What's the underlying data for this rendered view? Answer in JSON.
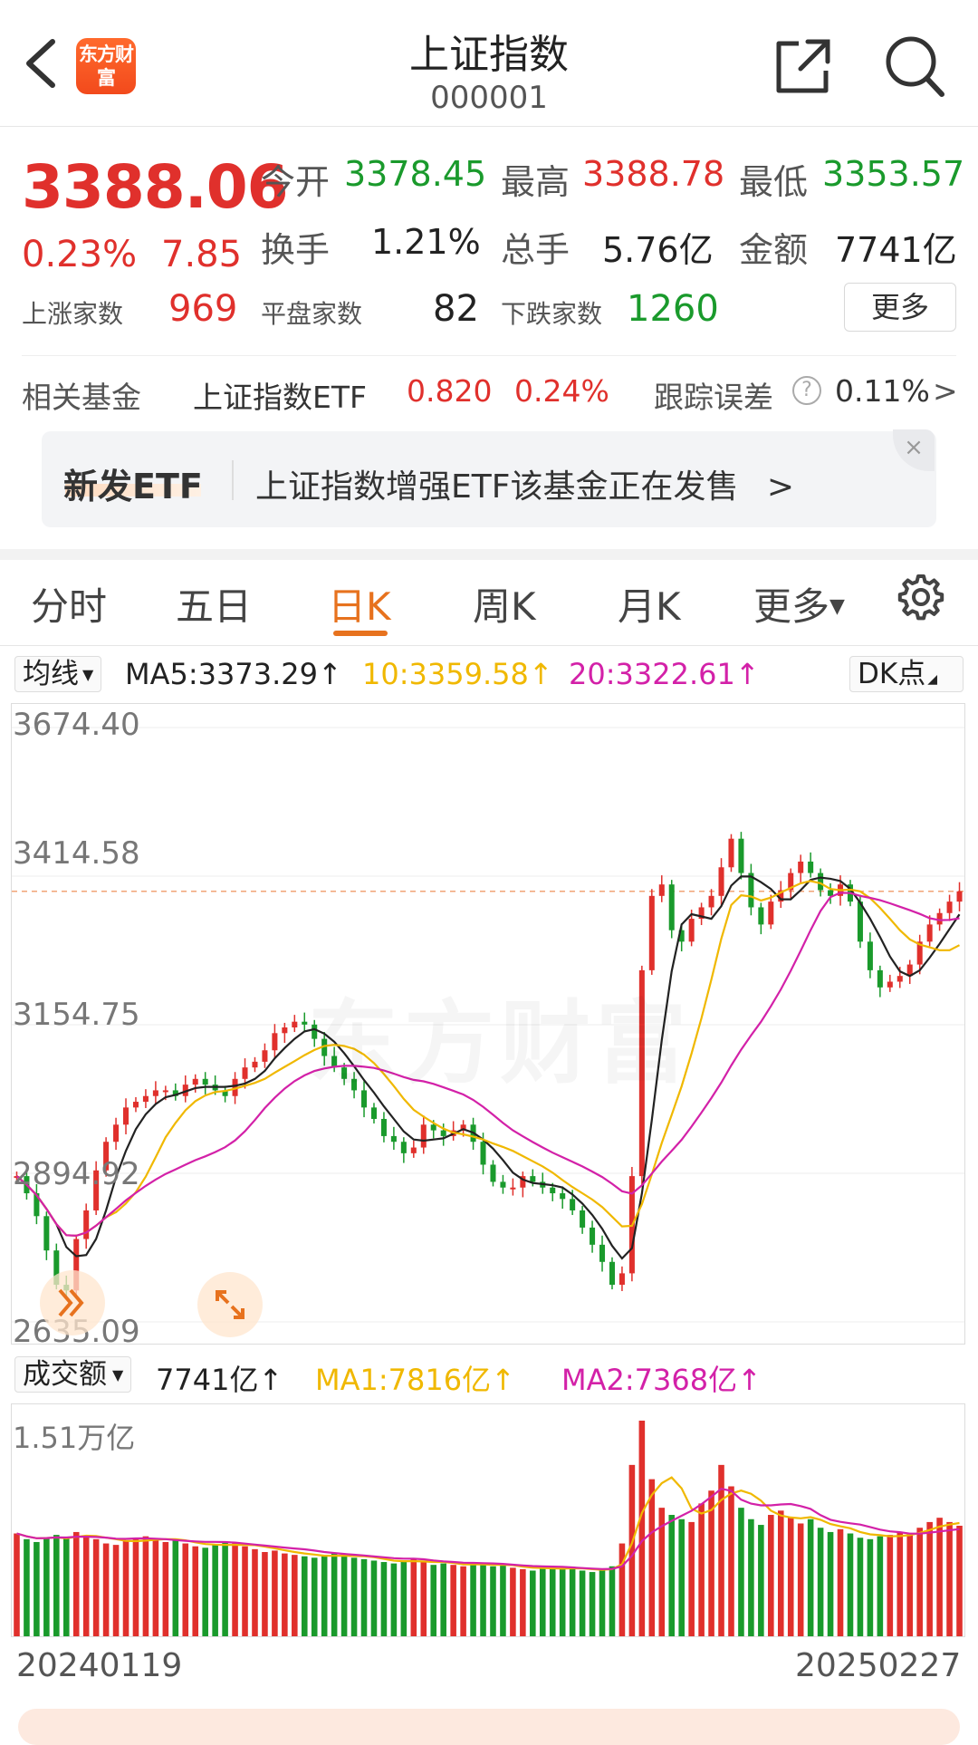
{
  "header": {
    "title": "上证指数",
    "code": "000001",
    "logo_text": "东方财富"
  },
  "quote": {
    "price": "3388.06",
    "change_pct": "0.23%",
    "change": "7.85",
    "open_label": "今开",
    "open": "3378.45",
    "high_label": "最高",
    "high": "3388.78",
    "low_label": "最低",
    "low": "3353.57",
    "turnover_label": "换手",
    "turnover": "1.21%",
    "volume_label": "总手",
    "volume": "5.76亿",
    "amount_label": "金额",
    "amount": "7741亿",
    "up_label": "上涨家数",
    "up": "969",
    "flat_label": "平盘家数",
    "flat": "82",
    "down_label": "下跌家数",
    "down": "1260",
    "more_label": "更多"
  },
  "fund": {
    "label": "相关基金",
    "name": "上证指数ETF",
    "price": "0.820",
    "pct": "0.24%",
    "track_label": "跟踪误差",
    "track": "0.11%",
    "arrow": ">"
  },
  "banner": {
    "tag": "新发ETF",
    "text": "上证指数增强ETF该基金正在发售",
    "arrow": ">",
    "close": "×"
  },
  "tabs": [
    {
      "label": "分时"
    },
    {
      "label": "五日"
    },
    {
      "label": "日K"
    },
    {
      "label": "周K"
    },
    {
      "label": "月K"
    },
    {
      "label": "更多"
    }
  ],
  "tabs_active_index": 2,
  "ma": {
    "select": "均线",
    "ma5": "MA5:3373.29",
    "ma10": "10:3359.58",
    "ma20": "20:3322.61",
    "up_arrow": "↑",
    "dk": "DK点"
  },
  "vol_ind": {
    "select": "成交额",
    "amount": "7741亿",
    "ma1": "MA1:7816亿",
    "ma2": "MA2:7368亿",
    "up_arrow": "↑"
  },
  "watermark": "东方财富",
  "colors": {
    "up": "#e0302c",
    "down": "#1a9a2c",
    "ma5": "#222222",
    "ma10": "#f0b800",
    "ma20": "#d321a8",
    "accent": "#e7721e"
  },
  "chart_data": [
    {
      "type": "candlestick",
      "x_start": "20240119",
      "x_end": "20250227",
      "y_ticks": [
        "3674.40",
        "3414.58",
        "3154.75",
        "2894.92",
        "2635.09"
      ],
      "ylim": [
        2635.09,
        3674.4
      ],
      "reference_line": 3388.06,
      "series": [
        {
          "name": "MA5",
          "value": 3373.29
        },
        {
          "name": "10",
          "value": 3359.58
        },
        {
          "name": "20",
          "value": 3322.61
        }
      ],
      "close_approx": [
        2890,
        2860,
        2820,
        2760,
        2700,
        2690,
        2780,
        2830,
        2900,
        2950,
        2980,
        3010,
        3020,
        3030,
        3040,
        3040,
        3030,
        3050,
        3060,
        3050,
        3040,
        3030,
        3060,
        3080,
        3090,
        3110,
        3140,
        3150,
        3160,
        3155,
        3130,
        3100,
        3080,
        3060,
        3040,
        3010,
        2990,
        2960,
        2950,
        2930,
        2940,
        2980,
        2970,
        2960,
        2970,
        2980,
        2950,
        2910,
        2880,
        2870,
        2870,
        2890,
        2880,
        2870,
        2860,
        2850,
        2830,
        2800,
        2770,
        2740,
        2700,
        2720,
        2890,
        3250,
        3380,
        3400,
        3320,
        3300,
        3340,
        3360,
        3380,
        3430,
        3480,
        3420,
        3360,
        3330,
        3370,
        3390,
        3420,
        3440,
        3420,
        3390,
        3380,
        3400,
        3370,
        3300,
        3250,
        3220,
        3230,
        3240,
        3260,
        3300,
        3330,
        3350,
        3370,
        3388
      ]
    },
    {
      "type": "bar",
      "title": "成交额",
      "y_max_label": "1.51万亿",
      "series": [
        {
          "name": "MA1",
          "value": "7816亿"
        },
        {
          "name": "MA2",
          "value": "7368亿"
        }
      ],
      "values_yi_approx": [
        7200,
        6800,
        6600,
        6900,
        7100,
        6900,
        7300,
        7000,
        6800,
        6500,
        6400,
        6700,
        6900,
        7000,
        6800,
        6600,
        6700,
        6500,
        6300,
        6200,
        6400,
        6600,
        6500,
        6300,
        6100,
        5900,
        6000,
        5800,
        5700,
        5600,
        5500,
        5600,
        5800,
        5700,
        5500,
        5400,
        5300,
        5200,
        5100,
        5300,
        5400,
        5200,
        5000,
        5100,
        5000,
        4900,
        5200,
        5000,
        4900,
        5000,
        4800,
        4700,
        4600,
        4800,
        4900,
        4700,
        4800,
        4600,
        4500,
        4700,
        4900,
        6500,
        12000,
        15100,
        11000,
        9000,
        8500,
        8200,
        8000,
        9300,
        10200,
        12000,
        10500,
        9000,
        8200,
        7800,
        8500,
        8800,
        8300,
        7900,
        8200,
        7600,
        7300,
        7500,
        7200,
        6900,
        6800,
        7000,
        7100,
        7300,
        7200,
        7600,
        8000,
        8300,
        8000,
        7741
      ]
    }
  ]
}
